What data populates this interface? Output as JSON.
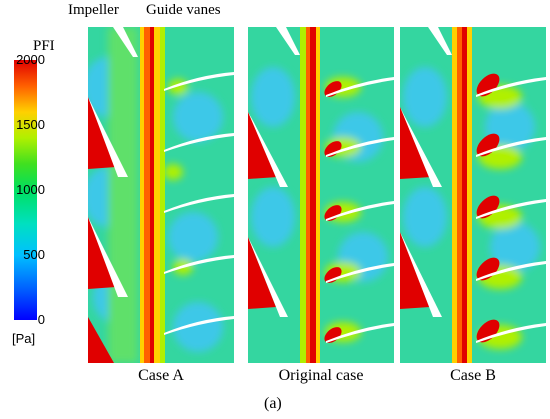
{
  "header": {
    "impeller_label": "Impeller",
    "guide_vanes_label": "Guide vanes"
  },
  "colorbar": {
    "title": "PFI",
    "ticks": [
      "2000",
      "1500",
      "1000",
      "500",
      "0"
    ],
    "unit": "[Pa]",
    "colors": [
      "#0000ff",
      "#00c0ff",
      "#00e060",
      "#ffd000",
      "#e00000"
    ]
  },
  "panels": [
    {
      "label": "Case A"
    },
    {
      "label": "Original case"
    },
    {
      "label": "Case B"
    }
  ],
  "figure_label": "(a)"
}
